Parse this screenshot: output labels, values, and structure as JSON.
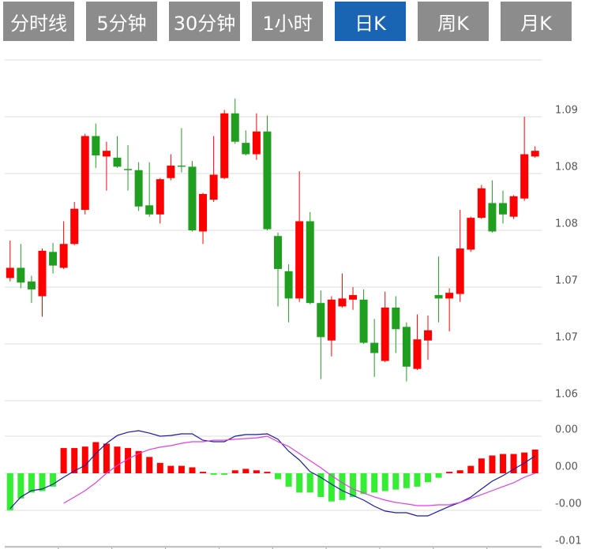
{
  "tabs": [
    {
      "label": "分时线"
    },
    {
      "label": "5分钟"
    },
    {
      "label": "30分钟"
    },
    {
      "label": "1小时"
    },
    {
      "label": "日K"
    },
    {
      "label": "周K"
    },
    {
      "label": "月K"
    }
  ],
  "active_tab": 4,
  "chart_data": [
    {
      "type": "candlestick",
      "up_color": "#ff0000",
      "down_color": "#1f9e1f",
      "grid": true,
      "ylim": [
        1.0625,
        1.0925
      ],
      "yticks": [
        {
          "value": 1.0875,
          "label": "1.09"
        },
        {
          "value": 1.0825,
          "label": "1.08"
        },
        {
          "value": 1.0775,
          "label": "1.08"
        },
        {
          "value": 1.0725,
          "label": "1.07"
        },
        {
          "value": 1.0675,
          "label": "1.07"
        },
        {
          "value": 1.0625,
          "label": "1.06"
        }
      ],
      "open": [
        1.0733,
        1.0742,
        1.073,
        1.0717,
        1.0756,
        1.0742,
        1.0763,
        1.0793,
        1.0858,
        1.084,
        1.0839,
        1.0829,
        1.0828,
        1.0797,
        1.0789,
        1.0821,
        1.0832,
        1.0831,
        1.0774,
        1.0802,
        1.0821,
        1.0878,
        1.0852,
        1.0842,
        1.0862,
        1.077,
        1.0739,
        1.0715,
        1.0783,
        1.0711,
        1.0678,
        1.0708,
        1.0714,
        1.0714,
        1.0676,
        1.066,
        1.0707,
        1.069,
        1.0653,
        1.0678,
        1.0718,
        1.0715,
        1.0719,
        1.0758,
        1.0786,
        1.0799,
        1.0799,
        1.0787,
        1.0803,
        1.084
      ],
      "high": [
        1.0766,
        1.0763,
        1.0735,
        1.0759,
        1.0764,
        1.0783,
        1.08,
        1.086,
        1.0869,
        1.0853,
        1.0858,
        1.085,
        1.0835,
        1.0835,
        1.0821,
        1.0842,
        1.0865,
        1.0836,
        1.0808,
        1.0858,
        1.0881,
        1.0891,
        1.0863,
        1.0878,
        1.0876,
        1.0773,
        1.0745,
        1.0827,
        1.0791,
        1.0722,
        1.0717,
        1.0737,
        1.0725,
        1.0723,
        1.0697,
        1.0721,
        1.0717,
        1.0694,
        1.0701,
        1.07,
        1.0752,
        1.0724,
        1.0793,
        1.0787,
        1.0815,
        1.0819,
        1.081,
        1.0806,
        1.0875,
        1.0849
      ],
      "low": [
        1.073,
        1.0724,
        1.0711,
        1.0699,
        1.0737,
        1.0741,
        1.0762,
        1.0789,
        1.083,
        1.081,
        1.083,
        1.081,
        1.0792,
        1.0787,
        1.0781,
        1.0819,
        1.0826,
        1.0774,
        1.0763,
        1.08,
        1.082,
        1.0851,
        1.0841,
        1.0837,
        1.0775,
        1.0708,
        1.0694,
        1.0712,
        1.071,
        1.0644,
        1.0664,
        1.0707,
        1.0705,
        1.0675,
        1.0646,
        1.0659,
        1.0667,
        1.0642,
        1.0652,
        1.0661,
        1.0694,
        1.0686,
        1.0712,
        1.0756,
        1.0785,
        1.0773,
        1.0781,
        1.0785,
        1.0801,
        1.0839
      ],
      "close": [
        1.0742,
        1.0729,
        1.0723,
        1.0757,
        1.0744,
        1.0763,
        1.0794,
        1.0858,
        1.0841,
        1.0845,
        1.0831,
        1.0828,
        1.0796,
        1.0789,
        1.082,
        1.0832,
        1.0831,
        1.0775,
        1.0807,
        1.0824,
        1.0878,
        1.0853,
        1.0842,
        1.0862,
        1.0776,
        1.0741,
        1.0715,
        1.0783,
        1.0711,
        1.0681,
        1.0714,
        1.0715,
        1.0718,
        1.0676,
        1.0667,
        1.0707,
        1.0688,
        1.0655,
        1.0679,
        1.0687,
        1.0715,
        1.072,
        1.0759,
        1.0786,
        1.0812,
        1.0774,
        1.0789,
        1.0805,
        1.0842,
        1.0845
      ]
    },
    {
      "type": "macd",
      "grid": true,
      "ylim": [
        -0.005,
        0.005
      ],
      "yticks": [
        {
          "value": 0.0025,
          "label": "0.00"
        },
        {
          "value": 0,
          "label": "0.00"
        },
        {
          "value": -0.0025,
          "label": "-0.00"
        },
        {
          "value": -0.005,
          "label": "-0.01"
        }
      ],
      "histogram": {
        "up_color": "#ff0000",
        "down_color": "#33ee33",
        "values": [
          -0.0025,
          -0.0017,
          -0.0013,
          -0.0012,
          -0.0009,
          0.0017,
          0.0017,
          0.0018,
          0.0021,
          0.002,
          0.0018,
          0.0017,
          0.0015,
          0.0011,
          0.0007,
          0.0005,
          0.0005,
          0.0004,
          0.0001,
          -0.0001,
          -0.0001,
          0.0002,
          0.0003,
          0.0002,
          0.0001,
          -0.0004,
          -0.0009,
          -0.0013,
          -0.0013,
          -0.0016,
          -0.0019,
          -0.0018,
          -0.0016,
          -0.0014,
          -0.0013,
          -0.0012,
          -0.0011,
          -0.001,
          -0.0009,
          -0.0006,
          -0.0003,
          0.0001,
          0.0002,
          0.0005,
          0.001,
          0.0012,
          0.0013,
          0.0013,
          0.0014,
          0.0016
        ]
      },
      "series": [
        {
          "color": "#1a1aa8",
          "values": [
            -0.00239,
            -0.0016,
            -0.00117,
            -0.00106,
            -0.00074,
            -0.00027,
            0.00016,
            0.00053,
            0.00133,
            0.00202,
            0.00255,
            0.00277,
            0.00287,
            0.00271,
            0.0025,
            0.00255,
            0.00266,
            0.00266,
            0.00223,
            0.00213,
            0.00213,
            0.0025,
            0.00261,
            0.00261,
            0.00266,
            0.00229,
            0.00149,
            0.0009,
            0.00011,
            -0.00027,
            -0.00074,
            -0.00117,
            -0.00149,
            -0.00181,
            -0.00223,
            -0.00255,
            -0.00266,
            -0.00266,
            -0.00287,
            -0.00287,
            -0.00255,
            -0.00223,
            -0.00197,
            -0.0016,
            -0.00106,
            -0.00053,
            -0.00016,
            0.00027,
            0.00069,
            0.00117
          ]
        },
        {
          "color": "#e040e0",
          "values": [
            null,
            null,
            null,
            null,
            null,
            -0.00202,
            -0.0016,
            -0.00117,
            -0.00064,
            0,
            0.00053,
            0.00096,
            0.00133,
            0.0016,
            0.00176,
            0.00186,
            0.00202,
            0.00213,
            0.00213,
            0.00223,
            0.00223,
            0.00229,
            0.00234,
            0.00239,
            0.0025,
            0.00213,
            0.00181,
            0.00133,
            0.00085,
            0.00037,
            -0.00016,
            -0.00064,
            -0.00106,
            -0.00133,
            -0.0016,
            -0.00181,
            -0.00197,
            -0.00207,
            -0.00218,
            -0.00218,
            -0.00213,
            -0.00213,
            -0.00197,
            -0.0017,
            -0.00144,
            -0.00117,
            -0.0009,
            -0.00064,
            -0.00027,
            0
          ]
        }
      ]
    }
  ]
}
